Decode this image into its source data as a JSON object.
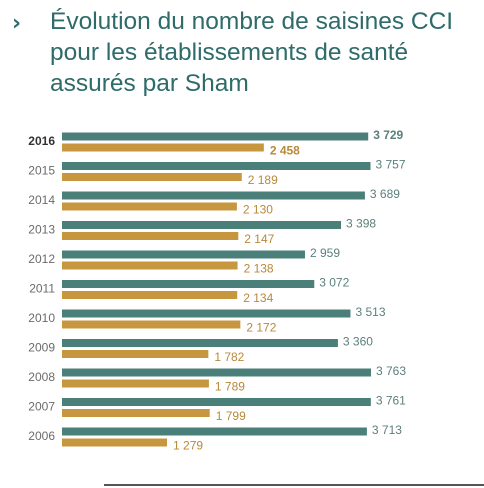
{
  "header": {
    "chevron": "›",
    "title": "Évolution du nombre de saisines CCI pour les établissements de santé assurés par Sham"
  },
  "colors": {
    "teal": "#4a7f7a",
    "gold": "#c7973f",
    "title": "#2e6b6a"
  },
  "chart_data": {
    "type": "bar",
    "orientation": "horizontal",
    "title": "Évolution du nombre de saisines CCI pour les établissements de santé assurés par Sham",
    "categories": [
      "2016",
      "2015",
      "2014",
      "2013",
      "2012",
      "2011",
      "2010",
      "2009",
      "2008",
      "2007",
      "2006"
    ],
    "highlight_category": "2016",
    "value_labels_teal": [
      "3 729",
      "3 757",
      "3 689",
      "3 398",
      "2 959",
      "3 072",
      "3 513",
      "3 360",
      "3 763",
      "3 761",
      "3 713"
    ],
    "value_labels_gold": [
      "2 458",
      "2 189",
      "2 130",
      "2 147",
      "2 138",
      "2 134",
      "2 172",
      "1 782",
      "1 789",
      "1 799",
      "1 279"
    ],
    "series": [
      {
        "values": [
          3729,
          3757,
          3689,
          3398,
          2959,
          3072,
          3513,
          3360,
          3763,
          3761,
          3713
        ]
      },
      {
        "values": [
          2458,
          2189,
          2130,
          2147,
          2138,
          2134,
          2172,
          1782,
          1789,
          1799,
          1279
        ]
      }
    ],
    "xlim": [
      0,
      3763
    ],
    "grid": false,
    "legend": "none"
  }
}
